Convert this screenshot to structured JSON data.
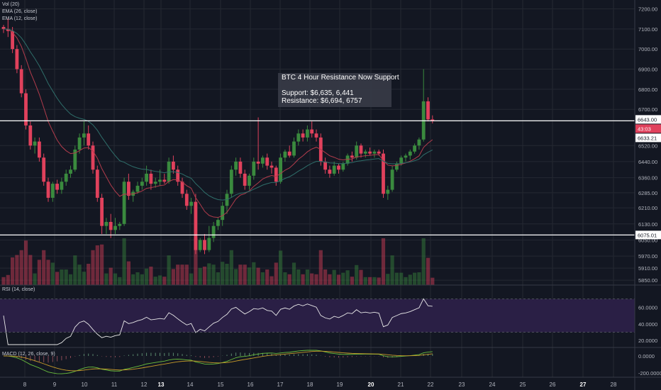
{
  "colors": {
    "background": "#131722",
    "grid": "#242832",
    "up": "#3a8a3e",
    "down": "#e0415c",
    "ema_fast": "#b23c4c",
    "ema_slow": "#2f6e6a",
    "level_line": "#ffffff",
    "rsi_line": "#e8e8e8",
    "rsi_band": "#2a1f45",
    "macd_line": "#6abf3d",
    "signal_line": "#c89b2a"
  },
  "indicator_labels": {
    "vol": "Vol (20)",
    "ema26": "EMA (26, close)",
    "ema12": "EMA (12, close)",
    "rsi": "RSI (14, close)",
    "macd": "MACD (12, 26, close, 9)"
  },
  "annotation": {
    "title": "BTC 4 Hour Resistance Now Support",
    "support": "Support: $6,635, 6,441",
    "resistance": "Resistance: $6,694, 6757"
  },
  "price_badges": {
    "current_price": "6643.00",
    "countdown": "43:03",
    "resistance_level": "6633.21",
    "support_level": "6075.01"
  },
  "chart_data": {
    "type": "candlestick",
    "x_labels": [
      "8",
      "9",
      "10",
      "11",
      "12",
      "13",
      "14",
      "15",
      "16",
      "17",
      "18",
      "19",
      "20",
      "21",
      "22",
      "23",
      "24",
      "25",
      "26",
      "27",
      "28"
    ],
    "x_label_bold": [
      "13",
      "20",
      "27"
    ],
    "price_axis": {
      "ticks": [
        7200,
        7100,
        7000,
        6900,
        6800,
        6700,
        6520,
        6440,
        6360,
        6285,
        6210,
        6130,
        6050,
        5970,
        5910,
        5850
      ],
      "range": [
        5840,
        7230
      ]
    },
    "rsi_axis": {
      "ticks": [
        60,
        40,
        20
      ],
      "band": [
        30,
        70
      ]
    },
    "macd_axis": {
      "ticks": [
        "0.0000",
        "-200.0000"
      ]
    },
    "horizontal_levels": [
      6643,
      6075.01
    ],
    "candles": [
      [
        7110,
        7120,
        7080,
        7100
      ],
      [
        7100,
        7150,
        7060,
        7090
      ],
      [
        7090,
        7110,
        6980,
        7000
      ],
      [
        7000,
        7020,
        6880,
        6900
      ],
      [
        6900,
        6920,
        6760,
        6780
      ],
      [
        6780,
        6800,
        6600,
        6620
      ],
      [
        6620,
        6640,
        6500,
        6520
      ],
      [
        6520,
        6560,
        6480,
        6540
      ],
      [
        6540,
        6560,
        6440,
        6460
      ],
      [
        6460,
        6480,
        6320,
        6340
      ],
      [
        6340,
        6360,
        6240,
        6260
      ],
      [
        6260,
        6340,
        6240,
        6330
      ],
      [
        6330,
        6350,
        6280,
        6300
      ],
      [
        6300,
        6360,
        6280,
        6340
      ],
      [
        6340,
        6400,
        6320,
        6380
      ],
      [
        6380,
        6420,
        6360,
        6400
      ],
      [
        6400,
        6520,
        6390,
        6500
      ],
      [
        6500,
        6580,
        6480,
        6560
      ],
      [
        6560,
        6640,
        6520,
        6580
      ],
      [
        6580,
        6620,
        6500,
        6520
      ],
      [
        6520,
        6540,
        6380,
        6400
      ],
      [
        6400,
        6420,
        6240,
        6260
      ],
      [
        6260,
        6280,
        6080,
        6120
      ],
      [
        6120,
        6160,
        6080,
        6140
      ],
      [
        6140,
        6180,
        6060,
        6100
      ],
      [
        6100,
        6160,
        6080,
        6120
      ],
      [
        6120,
        6140,
        6100,
        6130
      ],
      [
        6130,
        6360,
        6120,
        6340
      ],
      [
        6340,
        6380,
        6250,
        6270
      ],
      [
        6270,
        6300,
        6240,
        6290
      ],
      [
        6290,
        6340,
        6280,
        6320
      ],
      [
        6320,
        6360,
        6300,
        6340
      ],
      [
        6340,
        6420,
        6320,
        6380
      ],
      [
        6380,
        6400,
        6300,
        6330
      ],
      [
        6330,
        6360,
        6310,
        6340
      ],
      [
        6340,
        6400,
        6320,
        6350
      ],
      [
        6350,
        6380,
        6330,
        6340
      ],
      [
        6340,
        6460,
        6330,
        6440
      ],
      [
        6440,
        6470,
        6380,
        6400
      ],
      [
        6400,
        6420,
        6320,
        6340
      ],
      [
        6340,
        6360,
        6260,
        6280
      ],
      [
        6280,
        6300,
        6200,
        6220
      ],
      [
        6220,
        6260,
        6180,
        6240
      ],
      [
        6240,
        6280,
        5980,
        6000
      ],
      [
        6000,
        6060,
        5990,
        6050
      ],
      [
        6050,
        6080,
        5980,
        6000
      ],
      [
        6000,
        6120,
        5990,
        6060
      ],
      [
        6060,
        6140,
        6040,
        6120
      ],
      [
        6120,
        6160,
        6100,
        6150
      ],
      [
        6150,
        6240,
        6120,
        6220
      ],
      [
        6220,
        6300,
        6180,
        6280
      ],
      [
        6280,
        6420,
        6260,
        6400
      ],
      [
        6400,
        6460,
        6370,
        6440
      ],
      [
        6440,
        6460,
        6360,
        6380
      ],
      [
        6380,
        6400,
        6300,
        6320
      ],
      [
        6320,
        6380,
        6300,
        6370
      ],
      [
        6370,
        6460,
        6350,
        6440
      ],
      [
        6440,
        6660,
        6400,
        6430
      ],
      [
        6430,
        6470,
        6410,
        6460
      ],
      [
        6460,
        6480,
        6400,
        6420
      ],
      [
        6420,
        6440,
        6380,
        6410
      ],
      [
        6410,
        6420,
        6320,
        6340
      ],
      [
        6340,
        6480,
        6330,
        6460
      ],
      [
        6460,
        6500,
        6440,
        6490
      ],
      [
        6490,
        6520,
        6460,
        6470
      ],
      [
        6470,
        6560,
        6460,
        6540
      ],
      [
        6540,
        6600,
        6520,
        6580
      ],
      [
        6580,
        6600,
        6540,
        6560
      ],
      [
        6560,
        6620,
        6540,
        6600
      ],
      [
        6600,
        6640,
        6560,
        6580
      ],
      [
        6580,
        6600,
        6540,
        6560
      ],
      [
        6560,
        6580,
        6420,
        6440
      ],
      [
        6440,
        6460,
        6380,
        6400
      ],
      [
        6400,
        6420,
        6360,
        6380
      ],
      [
        6380,
        6440,
        6370,
        6420
      ],
      [
        6420,
        6430,
        6380,
        6400
      ],
      [
        6400,
        6440,
        6390,
        6430
      ],
      [
        6430,
        6480,
        6420,
        6470
      ],
      [
        6470,
        6490,
        6440,
        6460
      ],
      [
        6460,
        6540,
        6450,
        6520
      ],
      [
        6520,
        6530,
        6460,
        6480
      ],
      [
        6480,
        6500,
        6460,
        6490
      ],
      [
        6490,
        6510,
        6470,
        6480
      ],
      [
        6480,
        6500,
        6460,
        6490
      ],
      [
        6490,
        6500,
        6470,
        6480
      ],
      [
        6480,
        6500,
        6260,
        6280
      ],
      [
        6280,
        6320,
        6250,
        6300
      ],
      [
        6300,
        6420,
        6290,
        6400
      ],
      [
        6400,
        6440,
        6390,
        6430
      ],
      [
        6430,
        6470,
        6420,
        6460
      ],
      [
        6460,
        6480,
        6440,
        6470
      ],
      [
        6470,
        6500,
        6450,
        6490
      ],
      [
        6490,
        6530,
        6480,
        6520
      ],
      [
        6520,
        6560,
        6500,
        6550
      ],
      [
        6550,
        6900,
        6540,
        6740
      ],
      [
        6740,
        6760,
        6640,
        6650
      ],
      [
        6650,
        6670,
        6630,
        6643
      ]
    ]
  }
}
